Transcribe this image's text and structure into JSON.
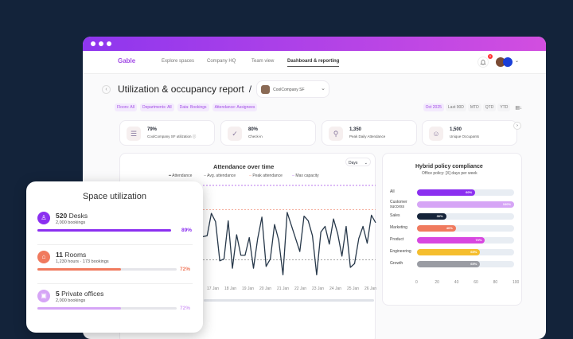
{
  "nav": {
    "logo": "Gable",
    "items": [
      "Explore spaces",
      "Company HQ",
      "Team view",
      "Dashboard & reporting"
    ],
    "notif_count": "0"
  },
  "header": {
    "title": "Utilization & occupancy report",
    "separator": "/",
    "location": "CoolCompany SF"
  },
  "filters": [
    "Floors: All",
    "Departments: All",
    "Data: Bookings",
    "Attendance: Assignees"
  ],
  "periods": [
    "Oct 2025",
    "Last 90D",
    "MTD",
    "QTD",
    "YTD"
  ],
  "kpis": [
    {
      "value": "79%",
      "label": "CoolCompany SF utilization ⓘ",
      "icon": "list-icon"
    },
    {
      "value": "80%",
      "label": "Check-in",
      "icon": "check-circle-icon"
    },
    {
      "value": "1,350",
      "label": "Peak Daily Attendance",
      "icon": "people-icon"
    },
    {
      "value": "1,500",
      "label": "Unique Occupants",
      "icon": "user-search-icon"
    }
  ],
  "attendance": {
    "title": "Attendance over time",
    "dropdown": "Days",
    "legend": [
      "Attendance",
      "Avg. attendance",
      "Peak attendance",
      "Max capacity"
    ]
  },
  "hybrid": {
    "title": "Hybrid policy compliance",
    "subtitle": "Office policy: [X] days per week"
  },
  "space": {
    "title": "Space utilization",
    "rows": [
      {
        "count": "520",
        "name": "Desks",
        "sub": "2,000 bookings",
        "pct": "89%",
        "value": 89,
        "color": "#8b2ff0"
      },
      {
        "count": "11",
        "name": "Rooms",
        "sub": "1,230 hours  ·  173 bookings",
        "pct": "72%",
        "value": 72,
        "color": "#f07a5e"
      },
      {
        "count": "5",
        "name": "Private offices",
        "sub": "2,000 bookings",
        "pct": "72%",
        "value": 72,
        "color": "#d6a5f6"
      }
    ]
  },
  "chart_data": [
    {
      "type": "line",
      "title": "Attendance over time",
      "x_ticks": [
        "17 Jan",
        "18 Jan",
        "19 Jan",
        "20 Jan",
        "21 Jan",
        "22 Jan",
        "23 Jan",
        "24 Jan",
        "25 Jan",
        "26 Jan"
      ],
      "series": [
        {
          "name": "Attendance",
          "values": [
            45,
            46,
            70,
            61,
            19,
            21,
            62,
            11,
            47,
            25,
            25,
            44,
            11,
            43,
            66,
            13,
            21,
            58,
            41,
            4,
            71,
            57,
            43,
            29,
            67,
            62,
            46,
            4,
            50,
            56,
            37,
            64,
            48,
            24,
            56,
            12,
            16,
            43,
            56,
            38,
            68,
            60
          ]
        }
      ],
      "reference_lines": {
        "Avg. attendance": 20,
        "Peak attendance": 74,
        "Max capacity": 100
      },
      "ylim": [
        0,
        100
      ]
    },
    {
      "type": "bar",
      "orientation": "horizontal",
      "title": "Hybrid policy compliance",
      "categories": [
        "All",
        "Customer success",
        "Sales",
        "Marketing",
        "Product",
        "Engineering",
        "Growth"
      ],
      "values": [
        60,
        100,
        30,
        40,
        70,
        65,
        65
      ],
      "labels": [
        "60%",
        "100%",
        "30%",
        "40%",
        "70%",
        "65%",
        "65%"
      ],
      "colors": [
        "#8b2ff0",
        "#d6a5f6",
        "#15243a",
        "#f07a5e",
        "#d847e0",
        "#f5be2e",
        "#9a9ca3"
      ],
      "x_ticks": [
        "0",
        "20",
        "40",
        "60",
        "80",
        "100"
      ],
      "xlim": [
        0,
        100
      ]
    }
  ]
}
